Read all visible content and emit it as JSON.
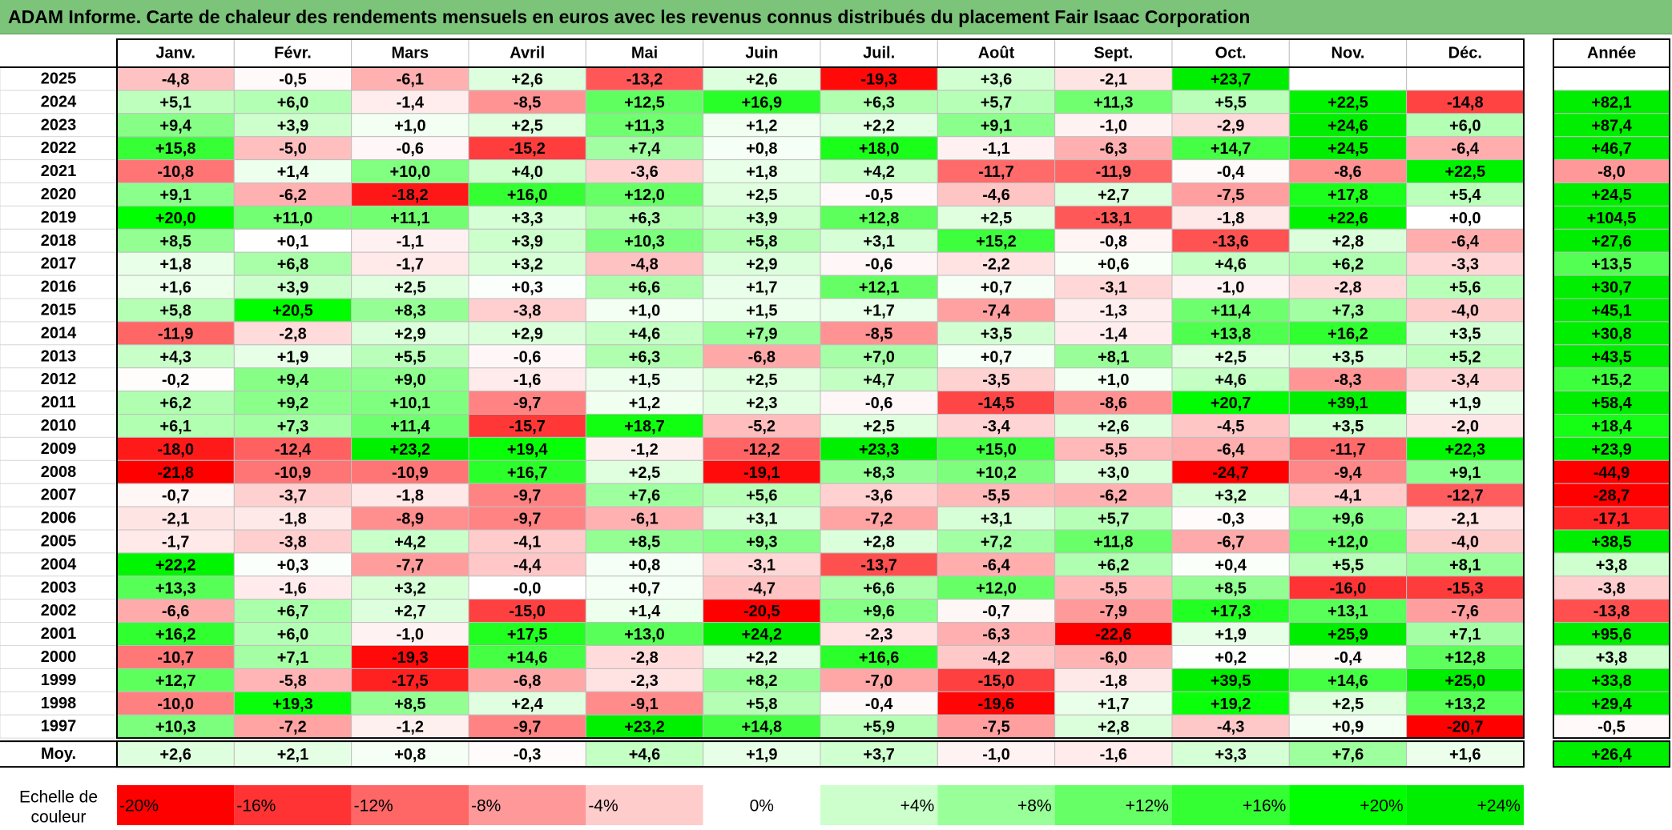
{
  "title": "ADAM Informe. Carte de chaleur des rendements mensuels en euros avec les revenus connus distribués du placement Fair Isaac Corporation",
  "chart_data": {
    "type": "heatmap",
    "columns": [
      "Janv.",
      "Févr.",
      "Mars",
      "Avril",
      "Mai",
      "Juin",
      "Juil.",
      "Août",
      "Sept.",
      "Oct.",
      "Nov.",
      "Déc."
    ],
    "year_column_label": "Année",
    "rows": [
      {
        "year": "2025",
        "values": [
          "-4,8",
          "-0,5",
          "-6,1",
          "+2,6",
          "-13,2",
          "+2,6",
          "-19,3",
          "+3,6",
          "-2,1",
          "+23,7",
          "",
          ""
        ],
        "annual": ""
      },
      {
        "year": "2024",
        "values": [
          "+5,1",
          "+6,0",
          "-1,4",
          "-8,5",
          "+12,5",
          "+16,9",
          "+6,3",
          "+5,7",
          "+11,3",
          "+5,5",
          "+22,5",
          "-14,8"
        ],
        "annual": "+82,1"
      },
      {
        "year": "2023",
        "values": [
          "+9,4",
          "+3,9",
          "+1,0",
          "+2,5",
          "+11,3",
          "+1,2",
          "+2,2",
          "+9,1",
          "-1,0",
          "-2,9",
          "+24,6",
          "+6,0"
        ],
        "annual": "+87,4"
      },
      {
        "year": "2022",
        "values": [
          "+15,8",
          "-5,0",
          "-0,6",
          "-15,2",
          "+7,4",
          "+0,8",
          "+18,0",
          "-1,1",
          "-6,3",
          "+14,7",
          "+24,5",
          "-6,4"
        ],
        "annual": "+46,7"
      },
      {
        "year": "2021",
        "values": [
          "-10,8",
          "+1,4",
          "+10,0",
          "+4,0",
          "-3,6",
          "+1,8",
          "+4,2",
          "-11,7",
          "-11,9",
          "-0,4",
          "-8,6",
          "+22,5"
        ],
        "annual": "-8,0"
      },
      {
        "year": "2020",
        "values": [
          "+9,1",
          "-6,2",
          "-18,2",
          "+16,0",
          "+12,0",
          "+2,5",
          "-0,5",
          "-4,6",
          "+2,7",
          "-7,5",
          "+17,8",
          "+5,4"
        ],
        "annual": "+24,5"
      },
      {
        "year": "2019",
        "values": [
          "+20,0",
          "+11,0",
          "+11,1",
          "+3,3",
          "+6,3",
          "+3,9",
          "+12,8",
          "+2,5",
          "-13,1",
          "-1,8",
          "+22,6",
          "+0,0"
        ],
        "annual": "+104,5"
      },
      {
        "year": "2018",
        "values": [
          "+8,5",
          "+0,1",
          "-1,1",
          "+3,9",
          "+10,3",
          "+5,8",
          "+3,1",
          "+15,2",
          "-0,8",
          "-13,6",
          "+2,8",
          "-6,4"
        ],
        "annual": "+27,6"
      },
      {
        "year": "2017",
        "values": [
          "+1,8",
          "+6,8",
          "-1,7",
          "+3,2",
          "-4,8",
          "+2,9",
          "-0,6",
          "-2,2",
          "+0,6",
          "+4,6",
          "+6,2",
          "-3,3"
        ],
        "annual": "+13,5"
      },
      {
        "year": "2016",
        "values": [
          "+1,6",
          "+3,9",
          "+2,5",
          "+0,3",
          "+6,6",
          "+1,7",
          "+12,1",
          "+0,7",
          "-3,1",
          "-1,0",
          "-2,8",
          "+5,6"
        ],
        "annual": "+30,7"
      },
      {
        "year": "2015",
        "values": [
          "+5,8",
          "+20,5",
          "+8,3",
          "-3,8",
          "+1,0",
          "+1,5",
          "+1,7",
          "-7,4",
          "-1,3",
          "+11,4",
          "+7,3",
          "-4,0"
        ],
        "annual": "+45,1"
      },
      {
        "year": "2014",
        "values": [
          "-11,9",
          "-2,8",
          "+2,9",
          "+2,9",
          "+4,6",
          "+7,9",
          "-8,5",
          "+3,5",
          "-1,4",
          "+13,8",
          "+16,2",
          "+3,5"
        ],
        "annual": "+30,8"
      },
      {
        "year": "2013",
        "values": [
          "+4,3",
          "+1,9",
          "+5,5",
          "-0,6",
          "+6,3",
          "-6,8",
          "+7,0",
          "+0,7",
          "+8,1",
          "+2,5",
          "+3,5",
          "+5,2"
        ],
        "annual": "+43,5"
      },
      {
        "year": "2012",
        "values": [
          "-0,2",
          "+9,4",
          "+9,0",
          "-1,6",
          "+1,5",
          "+2,5",
          "+4,7",
          "-3,5",
          "+1,0",
          "+4,6",
          "-8,3",
          "-3,4"
        ],
        "annual": "+15,2"
      },
      {
        "year": "2011",
        "values": [
          "+6,2",
          "+9,2",
          "+10,1",
          "-9,7",
          "+1,2",
          "+2,3",
          "-0,6",
          "-14,5",
          "-8,6",
          "+20,7",
          "+39,1",
          "+1,9"
        ],
        "annual": "+58,4"
      },
      {
        "year": "2010",
        "values": [
          "+6,1",
          "+7,3",
          "+11,4",
          "-15,7",
          "+18,7",
          "-5,2",
          "+2,5",
          "-3,4",
          "+2,6",
          "-4,5",
          "+3,5",
          "-2,0"
        ],
        "annual": "+18,4"
      },
      {
        "year": "2009",
        "values": [
          "-18,0",
          "-12,4",
          "+23,2",
          "+19,4",
          "-1,2",
          "-12,2",
          "+23,3",
          "+15,0",
          "-5,5",
          "-6,4",
          "-11,7",
          "+22,3"
        ],
        "annual": "+23,9"
      },
      {
        "year": "2008",
        "values": [
          "-21,8",
          "-10,9",
          "-10,9",
          "+16,7",
          "+2,5",
          "-19,1",
          "+8,3",
          "+10,2",
          "+3,0",
          "-24,7",
          "-9,4",
          "+9,1"
        ],
        "annual": "-44,9"
      },
      {
        "year": "2007",
        "values": [
          "-0,7",
          "-3,7",
          "-1,8",
          "-9,7",
          "+7,6",
          "+5,6",
          "-3,6",
          "-5,5",
          "-6,2",
          "+3,2",
          "-4,1",
          "-12,7"
        ],
        "annual": "-28,7"
      },
      {
        "year": "2006",
        "values": [
          "-2,1",
          "-1,8",
          "-8,9",
          "-9,7",
          "-6,1",
          "+3,1",
          "-7,2",
          "+3,1",
          "+5,7",
          "-0,3",
          "+9,6",
          "-2,1"
        ],
        "annual": "-17,1"
      },
      {
        "year": "2005",
        "values": [
          "-1,7",
          "-3,8",
          "+4,2",
          "-4,1",
          "+8,5",
          "+9,3",
          "+2,8",
          "+7,2",
          "+11,8",
          "-6,7",
          "+12,0",
          "-4,0"
        ],
        "annual": "+38,5"
      },
      {
        "year": "2004",
        "values": [
          "+22,2",
          "+0,3",
          "-7,7",
          "-4,4",
          "+0,8",
          "-3,1",
          "-13,7",
          "-6,4",
          "+6,2",
          "+0,4",
          "+5,5",
          "+8,1"
        ],
        "annual": "+3,8"
      },
      {
        "year": "2003",
        "values": [
          "+13,3",
          "-1,6",
          "+3,2",
          "-0,0",
          "+0,7",
          "-4,7",
          "+6,6",
          "+12,0",
          "-5,5",
          "+8,5",
          "-16,0",
          "-15,3"
        ],
        "annual": "-3,8"
      },
      {
        "year": "2002",
        "values": [
          "-6,6",
          "+6,7",
          "+2,7",
          "-15,0",
          "+1,4",
          "-20,5",
          "+9,6",
          "-0,7",
          "-7,9",
          "+17,3",
          "+13,1",
          "-7,6"
        ],
        "annual": "-13,8"
      },
      {
        "year": "2001",
        "values": [
          "+16,2",
          "+6,0",
          "-1,0",
          "+17,5",
          "+13,0",
          "+24,2",
          "-2,3",
          "-6,3",
          "-22,6",
          "+1,9",
          "+25,9",
          "+7,1"
        ],
        "annual": "+95,6"
      },
      {
        "year": "2000",
        "values": [
          "-10,7",
          "+7,1",
          "-19,3",
          "+14,6",
          "-2,8",
          "+2,2",
          "+16,6",
          "-4,2",
          "-6,0",
          "+0,2",
          "-0,4",
          "+12,8"
        ],
        "annual": "+3,8"
      },
      {
        "year": "1999",
        "values": [
          "+12,7",
          "-5,8",
          "-17,5",
          "-6,8",
          "-2,3",
          "+8,2",
          "-7,0",
          "-15,0",
          "-1,8",
          "+39,5",
          "+14,6",
          "+25,0"
        ],
        "annual": "+33,8"
      },
      {
        "year": "1998",
        "values": [
          "-10,0",
          "+19,3",
          "+8,5",
          "+2,4",
          "-9,1",
          "+5,8",
          "-0,4",
          "-19,6",
          "+1,7",
          "+19,2",
          "+2,5",
          "+13,2"
        ],
        "annual": "+29,4"
      },
      {
        "year": "1997",
        "values": [
          "+10,3",
          "-7,2",
          "-1,2",
          "-9,7",
          "+23,2",
          "+14,8",
          "+5,9",
          "-7,5",
          "+2,8",
          "-4,3",
          "+0,9",
          "-20,7"
        ],
        "annual": "-0,5"
      }
    ],
    "average": {
      "label": "Moy.",
      "values": [
        "+2,6",
        "+2,1",
        "+0,8",
        "-0,3",
        "+4,6",
        "+1,9",
        "+3,7",
        "-1,0",
        "-1,6",
        "+3,3",
        "+7,6",
        "+1,6"
      ],
      "annual": "+26,4"
    },
    "color_scale": {
      "label_line1": "Echelle de",
      "label_line2": "couleur",
      "stops": [
        {
          "label": "-20%",
          "value": -20,
          "color": "#ff0000"
        },
        {
          "label": "-16%",
          "value": -16,
          "color": "#ff3333"
        },
        {
          "label": "-12%",
          "value": -12,
          "color": "#ff6666"
        },
        {
          "label": "-8%",
          "value": -8,
          "color": "#ff9999"
        },
        {
          "label": "-4%",
          "value": -4,
          "color": "#ffcccc"
        },
        {
          "label": "0%",
          "value": 0,
          "color": "#ffffff"
        },
        {
          "label": "+4%",
          "value": 4,
          "color": "#ccffcc"
        },
        {
          "label": "+8%",
          "value": 8,
          "color": "#99ff99"
        },
        {
          "label": "+12%",
          "value": 12,
          "color": "#66ff66"
        },
        {
          "label": "+16%",
          "value": 16,
          "color": "#33ff33"
        },
        {
          "label": "+20%",
          "value": 20,
          "color": "#00ff00"
        },
        {
          "label": "+24%",
          "value": 24,
          "color": "#00ee00"
        }
      ]
    }
  }
}
